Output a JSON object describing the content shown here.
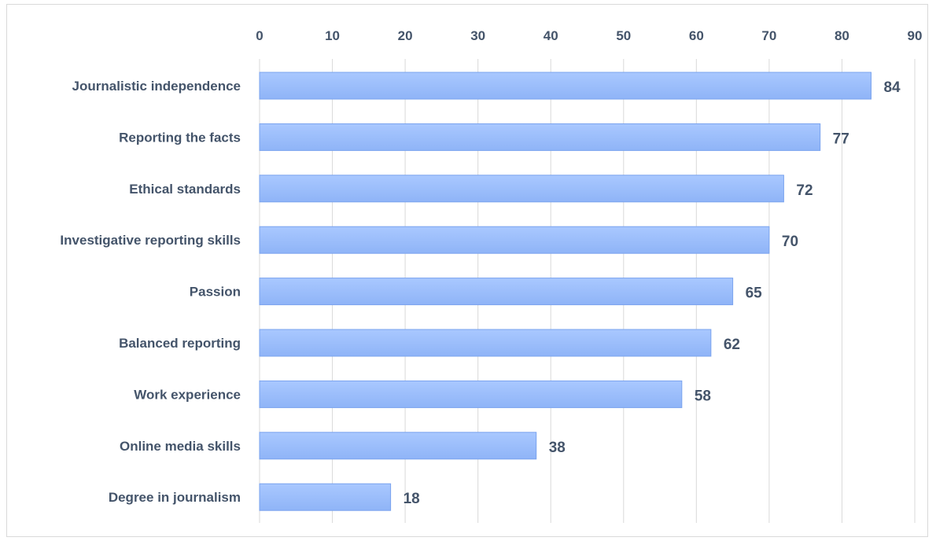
{
  "chart_data": {
    "type": "bar",
    "orientation": "horizontal",
    "categories": [
      "Journalistic independence",
      "Reporting the facts",
      "Ethical standards",
      "Investigative reporting skills",
      "Passion",
      "Balanced reporting",
      "Work experience",
      "Online media skills",
      "Degree in journalism"
    ],
    "values": [
      84,
      77,
      72,
      70,
      65,
      62,
      58,
      38,
      18
    ],
    "xlim": [
      0,
      90
    ],
    "xticks": [
      0,
      10,
      20,
      30,
      40,
      50,
      60,
      70,
      80,
      90
    ],
    "x_axis_position": "top",
    "grid": true,
    "legend": "none",
    "bar_color_light": "#a9c8ff",
    "bar_color_dark": "#8fb4f7",
    "bar_edge_color": "#7aa3ee",
    "label_color": "#44546a",
    "grid_color": "#d9d9d9"
  }
}
